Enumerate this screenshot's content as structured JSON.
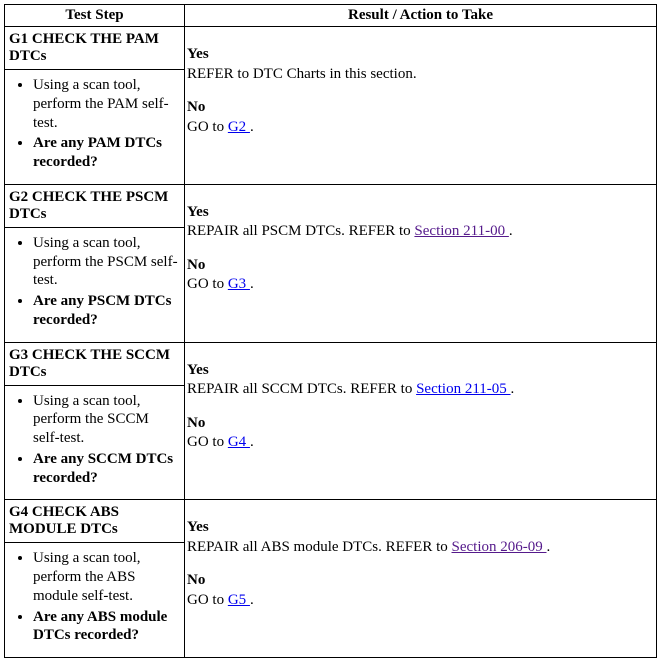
{
  "header": {
    "left": "Test Step",
    "right": "Result / Action to Take"
  },
  "rows": [
    {
      "title": "G1 CHECK THE PAM DTCs",
      "bullet1": "Using a scan tool, perform the PAM self-test.",
      "bullet2": "Are any PAM DTCs recorded?",
      "yes_label": "Yes",
      "yes_text_pre": "REFER to DTC Charts in this section.",
      "yes_link": "",
      "yes_text_post": "",
      "yes_link_class": "",
      "no_label": "No",
      "no_pre": "GO to ",
      "no_link": "G2 ",
      "no_post": ".",
      "no_link_class": "unvisited"
    },
    {
      "title": "G2 CHECK THE PSCM DTCs",
      "bullet1": "Using a scan tool, perform the PSCM self-test.",
      "bullet2": "Are any PSCM DTCs recorded?",
      "yes_label": "Yes",
      "yes_text_pre": "REPAIR all PSCM DTCs. REFER to ",
      "yes_link": "Section 211-00 ",
      "yes_text_post": ".",
      "yes_link_class": "visited",
      "no_label": "No",
      "no_pre": "GO to ",
      "no_link": "G3 ",
      "no_post": ".",
      "no_link_class": "unvisited"
    },
    {
      "title": "G3 CHECK THE SCCM DTCs",
      "bullet1": "Using a scan tool, perform the SCCM self-test.",
      "bullet2": "Are any SCCM DTCs recorded?",
      "yes_label": "Yes",
      "yes_text_pre": "REPAIR all SCCM DTCs. REFER to ",
      "yes_link": "Section 211-05 ",
      "yes_text_post": ".",
      "yes_link_class": "unvisited",
      "no_label": "No",
      "no_pre": "GO to ",
      "no_link": "G4 ",
      "no_post": ".",
      "no_link_class": "unvisited"
    },
    {
      "title": "G4 CHECK ABS MODULE DTCs",
      "bullet1": "Using a scan tool, perform the ABS module self-test.",
      "bullet2": "Are any ABS module DTCs recorded?",
      "yes_label": "Yes",
      "yes_text_pre": "REPAIR all ABS module DTCs. REFER to ",
      "yes_link": "Section 206-09 ",
      "yes_text_post": ".",
      "yes_link_class": "visited",
      "no_label": "No",
      "no_pre": "GO to ",
      "no_link": "G5 ",
      "no_post": ".",
      "no_link_class": "unvisited"
    }
  ]
}
